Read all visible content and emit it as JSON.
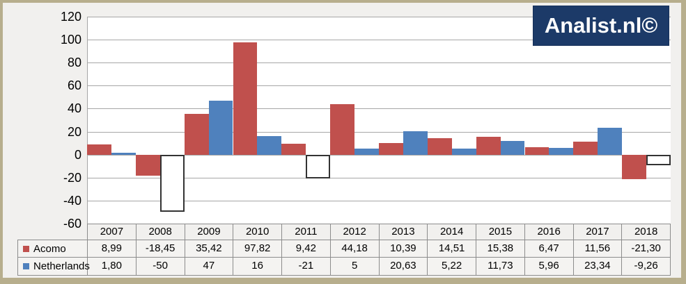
{
  "logo": {
    "text": "Analist.nl©",
    "background": "#1c3a68",
    "text_color": "#ffffff"
  },
  "frame": {
    "border_color": "#b7ae8d",
    "background": "#f1f0ee"
  },
  "chart_data": {
    "type": "bar",
    "title": "",
    "xlabel": "",
    "ylabel": "",
    "categories": [
      "2007",
      "2008",
      "2009",
      "2010",
      "2011",
      "2012",
      "2013",
      "2014",
      "2015",
      "2016",
      "2017",
      "2018"
    ],
    "series": [
      {
        "name": "Acomo",
        "color": "#c0504d",
        "values": [
          8.99,
          -18.45,
          35.42,
          97.82,
          9.42,
          44.18,
          10.39,
          14.51,
          15.38,
          6.47,
          11.56,
          -21.3
        ],
        "display": [
          "8,99",
          "-18,45",
          "35,42",
          "97,82",
          "9,42",
          "44,18",
          "10,39",
          "14,51",
          "15,38",
          "6,47",
          "11,56",
          "-21,30"
        ],
        "invert_if_negative": false
      },
      {
        "name": "Netherlands",
        "color": "#4f81bd",
        "values": [
          1.8,
          -50,
          47,
          16,
          -21,
          5,
          20.63,
          5.22,
          11.73,
          5.96,
          23.34,
          -9.26
        ],
        "display": [
          "1,80",
          "-50",
          "47",
          "16",
          "-21",
          "5",
          "20,63",
          "5,22",
          "11,73",
          "5,96",
          "23,34",
          "-9,26"
        ],
        "invert_if_negative": true,
        "negative_fill": "#ffffff",
        "negative_border": "#333333"
      }
    ],
    "ylim": [
      -60,
      120
    ],
    "y_ticks": [
      120,
      100,
      80,
      60,
      40,
      20,
      0,
      -20,
      -40,
      -60
    ],
    "grid": true,
    "gridline_color": "#a6a6a6",
    "bar_gap": 0,
    "legend_position": "data-table-left"
  }
}
